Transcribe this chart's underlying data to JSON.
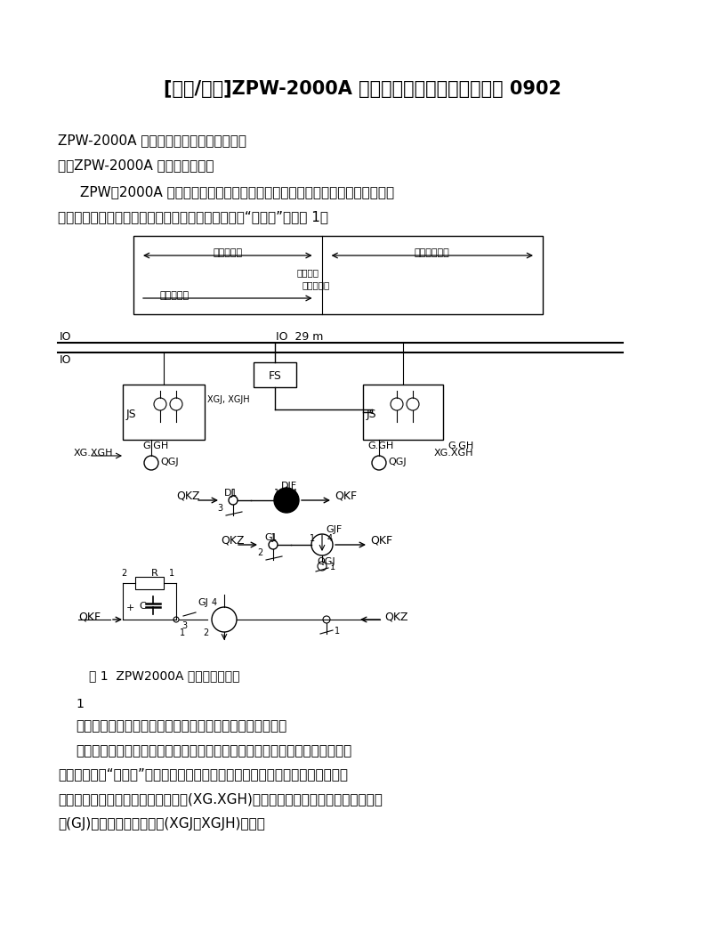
{
  "title": "[电子/电路]ZPW-2000A 双线双向四显示自动闭塞电路 0902",
  "subtitle1": "ZPW-2000A 双线双向四显示自动闭塞电路",
  "subtitle2": "一、ZPW-2000A 轨道电路示意图",
  "para1": "ZPW－2000A 型无绝缘轨道电路将轨道电路分为主轨道电路和调谐区短小轨道",
  "para2": "电路两个部分，并将短小轨道电路视为主轨道电路的“延续段”，见图 1。",
  "fig_caption": "图 1  ZPW2000A 轨道电路示意图",
  "num_label": "1",
  "body1": "发送器同时向线路两侧主轨道电路、小轨道电路发送信号。",
  "body2": "接收器除接收本主轨道电路频率信号外，还同时接收相邻区段小轨道电路的频",
  "body3": "率信号。上述“延续段”信号由运行前方相邻轨道电路接收器处理，并将处理结果",
  "body4": "形成小轨道电路轨道继电器执行条件(XG.XGH)送本轨道电路接收器，作为轨道继电",
  "body5": "器(GJ)励磁的必要检查条件(XGJ、XGJH)之一。",
  "bg_color": "#ffffff",
  "text_color": "#000000",
  "title_fontsize": 15,
  "body_fontsize": 11,
  "small_fontsize": 9
}
